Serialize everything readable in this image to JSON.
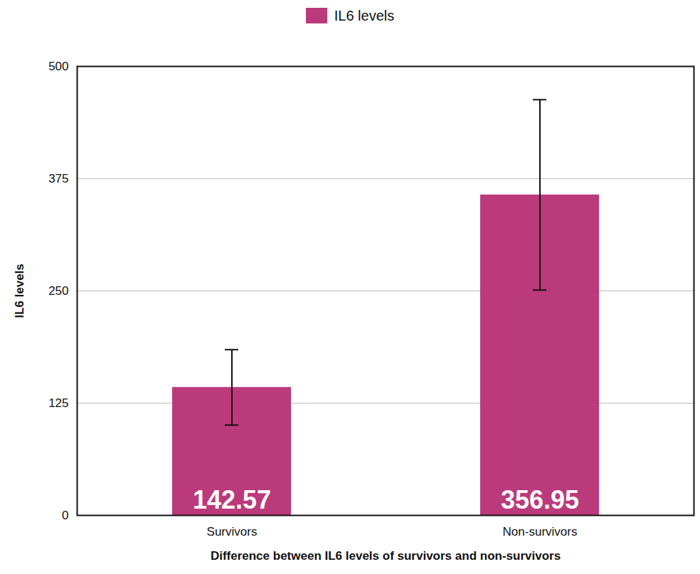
{
  "chart_data": {
    "type": "bar",
    "categories": [
      "Survivors",
      "Non-survivors"
    ],
    "series": [
      {
        "name": "IL6 levels",
        "color": "#bb3a7b",
        "values": [
          142.57,
          356.95
        ],
        "errors": [
          42,
          106
        ]
      }
    ],
    "xlabel": "Difference between IL6 levels of survivors and non-survivors",
    "ylabel": "IL6 levels",
    "ylim": [
      0,
      500
    ],
    "yticks": [
      0,
      125,
      250,
      375,
      500
    ],
    "grid": true,
    "legend": "top",
    "data_labels": true
  }
}
